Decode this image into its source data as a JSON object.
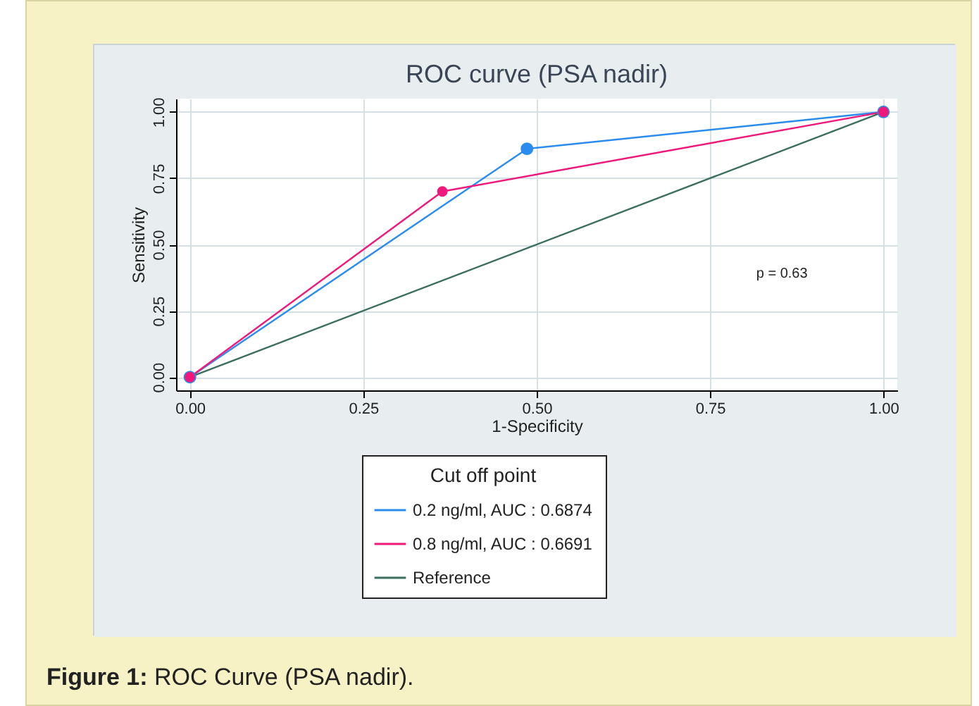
{
  "chart_data": {
    "type": "line",
    "title": "ROC curve (PSA nadir)",
    "xlabel": "1-Specificity",
    "ylabel": "Sensitivity",
    "legend_title": "Cut off point",
    "series": [
      {
        "name": "0.2 ng/ml, AUC : 0.6874",
        "color": "#2b8cf0",
        "x": [
          0,
          0.486,
          1
        ],
        "values": [
          0,
          0.861,
          1
        ],
        "marker": "circle"
      },
      {
        "name": "0.8 ng/ml, AUC : 0.6691",
        "color": "#f0187a",
        "x": [
          0,
          0.364,
          1
        ],
        "values": [
          0,
          0.7,
          1
        ],
        "marker": "circle"
      },
      {
        "name": "Reference",
        "color": "#3b6e5e",
        "x": [
          0,
          1
        ],
        "values": [
          0,
          1
        ],
        "marker": "none"
      }
    ],
    "xlim": [
      -0.02,
      1.02
    ],
    "ylim": [
      -0.05,
      1.05
    ],
    "xticks": [
      {
        "value": 0,
        "label": "0.00"
      },
      {
        "value": 0.25,
        "label": "0.25"
      },
      {
        "value": 0.5,
        "label": "0.50"
      },
      {
        "value": 0.75,
        "label": "0.75"
      },
      {
        "value": 1,
        "label": "1.00"
      }
    ],
    "yticks": [
      {
        "value": 0,
        "label": "0.00"
      },
      {
        "value": 0.25,
        "label": "0.25"
      },
      {
        "value": 0.5,
        "label": "0.50"
      },
      {
        "value": 0.75,
        "label": "0.75"
      },
      {
        "value": 1,
        "label": "1.00"
      }
    ],
    "grid": true,
    "legend": "bottom",
    "annotations": [
      "p = 0.63",
      "Figure 1: ROC Curve (PSA nadir)."
    ]
  }
}
